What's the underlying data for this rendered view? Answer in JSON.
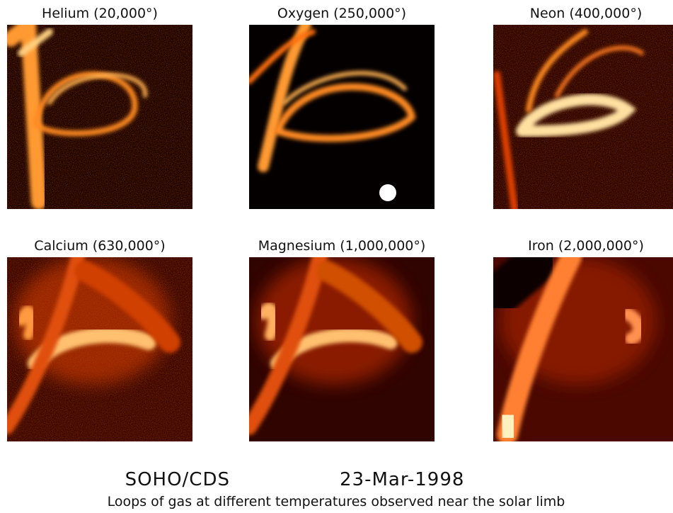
{
  "panels": [
    {
      "label": "Helium (20,000°)"
    },
    {
      "label": "Oxygen (250,000°)"
    },
    {
      "label": "Neon (400,000°)"
    },
    {
      "label": "Calcium (630,000°)"
    },
    {
      "label": "Magnesium (1,000,000°)"
    },
    {
      "label": "Iron (2,000,000°)"
    }
  ],
  "footer": {
    "instrument": "SOHO/CDS",
    "date": "23-Mar-1998",
    "caption": "Loops of gas at different temperatures observed near the solar limb"
  }
}
